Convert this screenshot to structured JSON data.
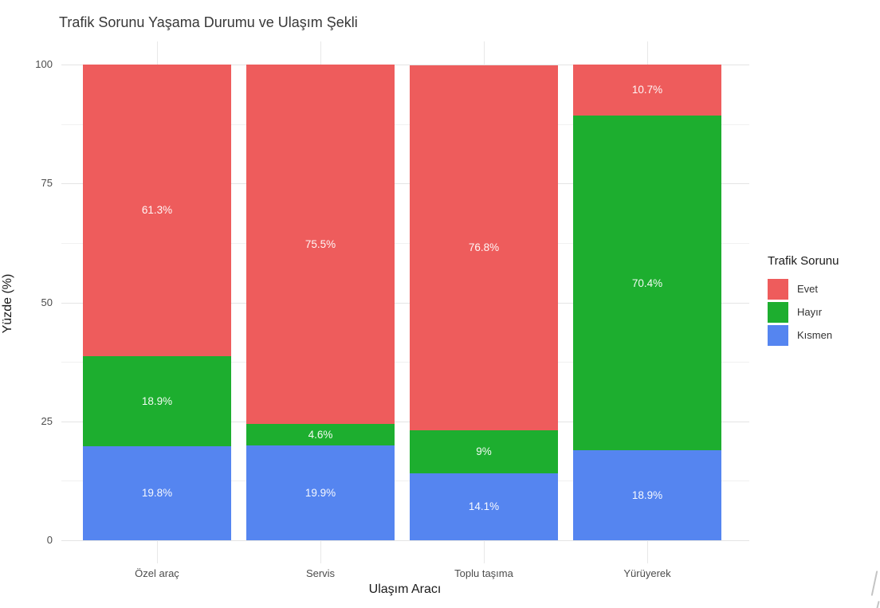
{
  "figure": {
    "background": "#ffffff"
  },
  "chart_data": {
    "type": "bar",
    "stacked": true,
    "percent_stack": true,
    "title": "Trafik Sorunu Yaşama Durumu ve Ulaşım Şekli",
    "xlabel": "Ulaşım Aracı",
    "ylabel": "Yüzde (%)",
    "categories": [
      "Özel araç",
      "Servis",
      "Toplu taşıma",
      "Yürüyerek"
    ],
    "series": [
      {
        "name": "Evet",
        "color": "#ee5c5c",
        "values": [
          61.3,
          75.5,
          76.8,
          10.7
        ],
        "labels": [
          "61.3%",
          "75.5%",
          "76.8%",
          "10.7%"
        ]
      },
      {
        "name": "Hayır",
        "color": "#1dae2f",
        "values": [
          18.9,
          4.6,
          9.0,
          70.4
        ],
        "labels": [
          "18.9%",
          "4.6%",
          "9%",
          "70.4%"
        ]
      },
      {
        "name": "Kısmen",
        "color": "#5585f0",
        "values": [
          19.8,
          19.9,
          14.1,
          18.9
        ],
        "labels": [
          "19.8%",
          "19.9%",
          "14.1%",
          "18.9%"
        ]
      }
    ],
    "stack_order_bottom_to_top": [
      "Kısmen",
      "Hayır",
      "Evet"
    ],
    "ylim": [
      0,
      100
    ],
    "yticks": [
      0,
      25,
      50,
      75,
      100
    ],
    "grid": {
      "major_horizontal": true,
      "minor_horizontal": true,
      "vertical_at_category_centers": true
    },
    "legend_title": "Trafik Sorunu",
    "legend_position": "right",
    "label_color": "#ffffff",
    "gridline_major_color": "#e4e4e4",
    "gridline_minor_color": "#f1f1f1"
  }
}
